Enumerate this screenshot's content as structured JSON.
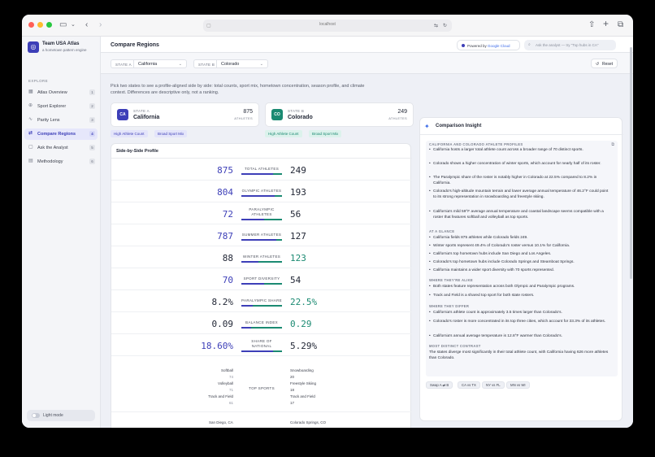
{
  "browser": {
    "url": "localhost"
  },
  "app": {
    "name": "Team USA Atlas",
    "tagline": "a hometown pattern engine"
  },
  "sidebar": {
    "section": "EXPLORE",
    "items": [
      {
        "label": "Atlas Overview",
        "badge": "1"
      },
      {
        "label": "Sport Explorer",
        "badge": "2"
      },
      {
        "label": "Parity Lens",
        "badge": "3"
      },
      {
        "label": "Compare Regions",
        "badge": "4"
      },
      {
        "label": "Ask the Analyst",
        "badge": "5"
      },
      {
        "label": "Methodology",
        "badge": "6"
      }
    ],
    "theme_toggle": "Light mode"
  },
  "header": {
    "title": "Compare Regions",
    "powered_prefix": "Powered by",
    "powered_brand": "Google Cloud",
    "ask_placeholder": "Ask the analyst — try \"Top hubs in CA\""
  },
  "filters": {
    "state_a_label": "STATE A",
    "state_a_value": "California",
    "state_b_label": "STATE B",
    "state_b_value": "Colorado",
    "reset": "Reset"
  },
  "intro": "Pick two states to see a profile-aligned side by side: total counts, sport mix, hometown concentration, season profile, and climate context. Differences are descriptive only, not a ranking.",
  "state_a": {
    "abbr": "CA",
    "label": "STATE A",
    "name": "California",
    "count": "875",
    "unit": "ATHLETES",
    "tags": [
      "High Athlete Count",
      "Broad Sport Mix"
    ]
  },
  "state_b": {
    "abbr": "CO",
    "label": "STATE B",
    "name": "Colorado",
    "count": "249",
    "unit": "ATHLETES",
    "tags": [
      "High Athlete Count",
      "Broad Sport Mix"
    ]
  },
  "colors": {
    "state_a": "#3d3fb8",
    "state_b": "#1b8a72"
  },
  "profile": {
    "title": "Side-by-Side Profile",
    "metrics": [
      {
        "label": "TOTAL ATHLETES",
        "a": "875",
        "b": "249",
        "a_share": 0.78,
        "b_share": 0.22,
        "emph": "b"
      },
      {
        "label": "OLYMPIC ATHLETES",
        "a": "804",
        "b": "193",
        "a_share": 0.81,
        "b_share": 0.19,
        "emph": "b"
      },
      {
        "label": "PARALYMPIC ATHLETES",
        "a": "72",
        "b": "56",
        "a_share": 0.56,
        "b_share": 0.44,
        "emph": "b"
      },
      {
        "label": "SUMMER ATHLETES",
        "a": "787",
        "b": "127",
        "a_share": 0.86,
        "b_share": 0.14,
        "emph": "b"
      },
      {
        "label": "WINTER ATHLETES",
        "a": "88",
        "b": "123",
        "a_share": 0.42,
        "b_share": 0.58,
        "emph": "a"
      },
      {
        "label": "SPORT DIVERSITY",
        "a": "70",
        "b": "54",
        "a_share": 0.56,
        "b_share": 0.44,
        "emph": "b"
      },
      {
        "label": "PARALYMPIC SHARE",
        "a": "8.2%",
        "b": "22.5%",
        "a_share": 0.27,
        "b_share": 0.73,
        "emph": "a"
      },
      {
        "label": "BALANCE INDEX",
        "a": "0.09",
        "b": "0.29",
        "a_share": 0.24,
        "b_share": 0.76,
        "emph": "a"
      },
      {
        "label": "SHARE OF NATIONAL",
        "a": "18.60%",
        "b": "5.29%",
        "a_share": 0.78,
        "b_share": 0.22,
        "emph": "b"
      }
    ],
    "top_sports_label": "TOP SPORTS",
    "top_sports_a": [
      {
        "name": "Softball",
        "n": "74"
      },
      {
        "name": "Volleyball",
        "n": "71"
      },
      {
        "name": "Track and Field",
        "n": "61"
      }
    ],
    "top_sports_b": [
      {
        "name": "Snowboarding",
        "n": "20"
      },
      {
        "name": "Freestyle Skiing",
        "n": "18"
      },
      {
        "name": "Track and Field",
        "n": "17"
      }
    ],
    "hub_a": "San Diego, CA",
    "hub_b": "Colorado Springs, CO"
  },
  "insight": {
    "title": "Comparison Insight",
    "h1": "CALIFORNIA AND COLORADO ATHLETE PROFILES",
    "profile_items": [
      "California hosts a larger total athlete count across a broader range of 70 distinct sports.",
      "Colorado shows a higher concentration of winter sports, which account for nearly half of its roster.",
      "The Paralympic share of the roster is notably higher in Colorado at 22.5% compared to 8.2% in California.",
      "Colorado's high-altitude mountain terrain and lower average annual temperature of 46.2°F could point to its strong representation in snowboarding and freestyle skiing.",
      "California's mild 59°F average annual temperature and coastal landscape seems compatible with a roster that features softball and volleyball as top sports."
    ],
    "h2": "AT A GLANCE",
    "glance_items": [
      "California fields 875 athletes while Colorado fields 249.",
      "Winter sports represent 49.4% of Colorado's roster versus 10.1% for California.",
      "California's top hometown hubs include San Diego and Los Angeles.",
      "Colorado's top hometown hubs include Colorado Springs and Steamboat Springs.",
      "California maintains a wider sport diversity with 70 sports represented."
    ],
    "h3": "WHERE THEY'RE ALIKE",
    "alike_items": [
      "Both states feature representation across both Olympic and Paralympic programs.",
      "Track and Field is a shared top sport for both state rosters."
    ],
    "h4": "WHERE THEY DIFFER",
    "differ_items": [
      "California's athlete count is approximately 3.5 times larger than Colorado's.",
      "Colorado's roster is more concentrated in its top three cities, which account for 33.3% of its athletes.",
      "California's annual average temperature is 12.8°F warmer than Colorado's."
    ],
    "h5": "MOST DISTINCT CONTRAST",
    "contrast": "The states diverge most significantly in their total athlete count, with California having 626 more athletes than Colorado.",
    "chips": [
      "Swap A ⇄ B",
      "CA vs TX",
      "NY vs FL",
      "MN vs WI"
    ]
  }
}
